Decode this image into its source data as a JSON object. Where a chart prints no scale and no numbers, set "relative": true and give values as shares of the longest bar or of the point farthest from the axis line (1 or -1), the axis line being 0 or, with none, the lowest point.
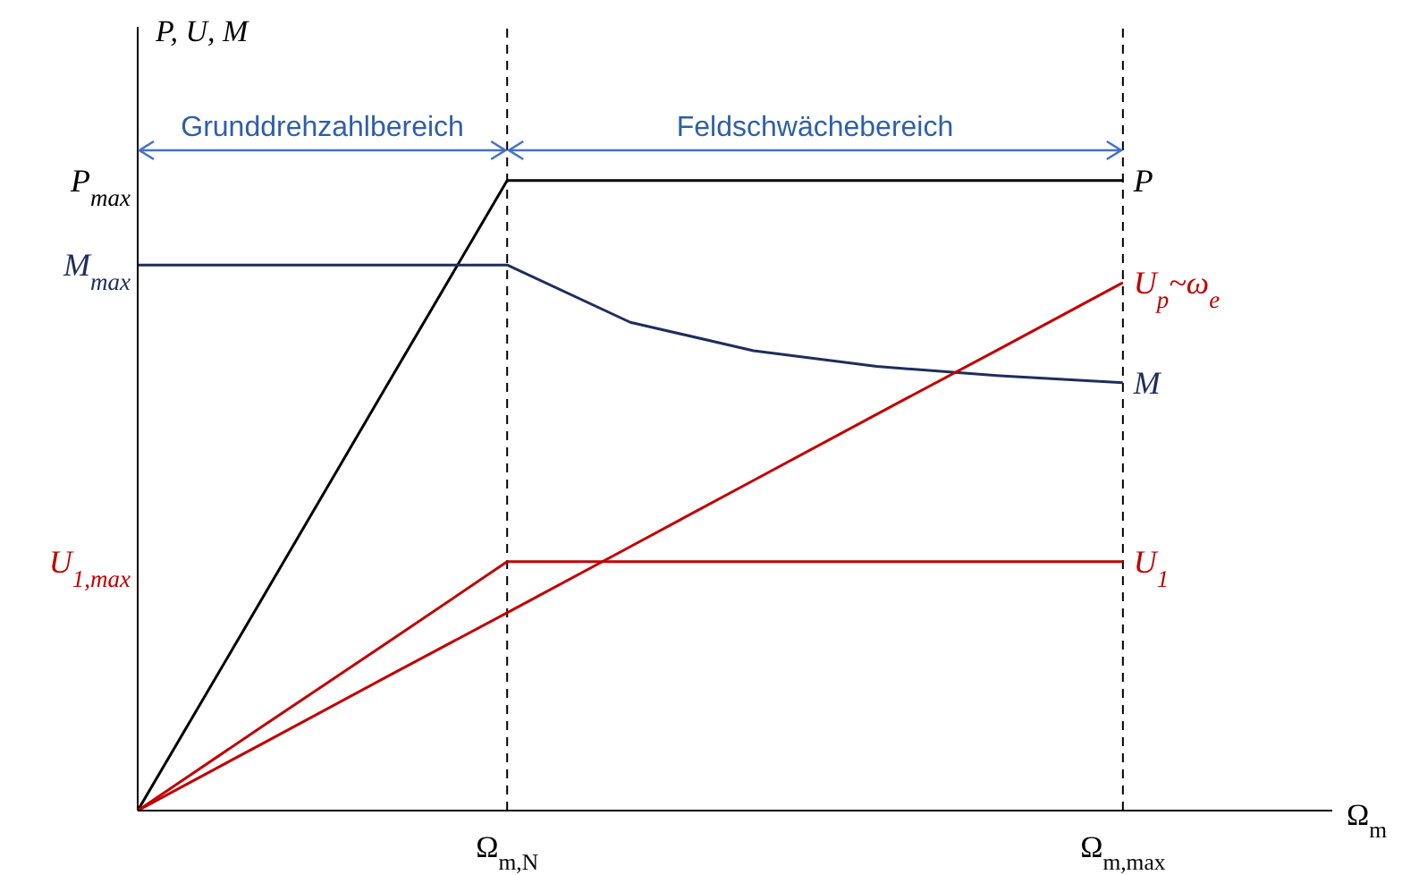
{
  "chart_data": {
    "type": "line",
    "relative": true,
    "xlabel": "Ω$_{m}$",
    "ylabel": "P, U, M",
    "categories": [
      null,
      null,
      null,
      "Ω$_{m,N}$",
      null,
      null,
      null,
      null,
      "Ω$_{m,max}$",
      null
    ],
    "series": [
      {
        "name": "P",
        "color": "#000000",
        "values": [
          0,
          0.333,
          0.667,
          1,
          1,
          1,
          1,
          1,
          1,
          null
        ]
      },
      {
        "name": "M",
        "color": "#1f2d5c",
        "values": [
          0.866,
          0.866,
          0.866,
          0.866,
          0.775,
          0.73,
          0.705,
          0.69,
          0.679,
          null
        ]
      },
      {
        "name": "U$_{1}$",
        "color": "#c00000",
        "values": [
          0,
          0.132,
          0.263,
          0.395,
          0.395,
          0.395,
          0.395,
          0.395,
          0.395,
          null
        ]
      },
      {
        "name": "U$_{p}$~ω$_{e}$",
        "color": "#c00000",
        "values": [
          0,
          0.105,
          0.21,
          0.314,
          0.419,
          0.524,
          0.629,
          0.733,
          0.838,
          null
        ]
      }
    ],
    "ref_lines": [
      {
        "axis": "x",
        "value": "Ω$_{m,N}$",
        "color": "#000000",
        "line_style": "dashed"
      },
      {
        "axis": "x",
        "value": "Ω$_{m,max}$",
        "color": "#000000",
        "line_style": "dashed"
      }
    ],
    "annotations": [
      "Grunddrehzahlbereich",
      "Feldschwächebereich",
      "P$_{max}$",
      "M$_{max}$",
      "U$_{1,max}$"
    ],
    "grid": false,
    "marker": "none",
    "line_style": "solid"
  }
}
